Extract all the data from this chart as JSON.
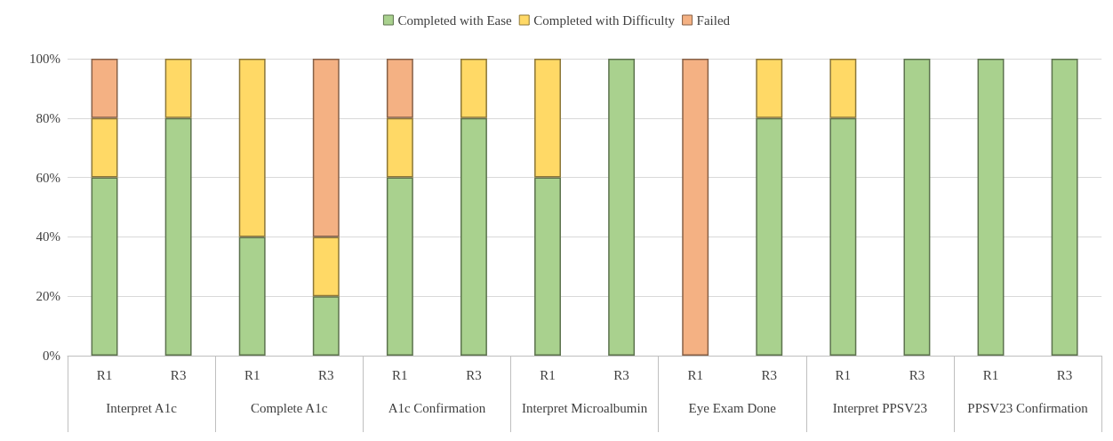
{
  "chart_data": {
    "type": "bar",
    "stacked": true,
    "categories": [
      "R1",
      "R3",
      "R1",
      "R3",
      "R1",
      "R3",
      "R1",
      "R3",
      "R1",
      "R3",
      "R1",
      "R3",
      "R1",
      "R3"
    ],
    "series": [
      {
        "name": "Completed with Ease",
        "color": "#a9d18e",
        "values": [
          60,
          80,
          40,
          20,
          60,
          80,
          60,
          100,
          0,
          80,
          80,
          100,
          100,
          100
        ]
      },
      {
        "name": "Completed with Difficulty",
        "color": "#ffd966",
        "values": [
          20,
          20,
          60,
          20,
          20,
          20,
          40,
          0,
          0,
          20,
          20,
          0,
          0,
          0
        ]
      },
      {
        "name": "Failed",
        "color": "#f4b183",
        "values": [
          20,
          0,
          0,
          60,
          20,
          0,
          0,
          0,
          100,
          0,
          0,
          0,
          0,
          0
        ]
      }
    ],
    "annotations": [
      "Interpret A1c",
      "Complete A1c",
      "A1c Confirmation",
      "Interpret Microalbumin",
      "Eye Exam Done",
      "Interpret PPSV23",
      "PPSV23 Confirmation"
    ],
    "ylim": [
      0,
      100
    ],
    "yticks": [
      {
        "value": 0,
        "label": "0%"
      },
      {
        "value": 20,
        "label": "20%"
      },
      {
        "value": 40,
        "label": "40%"
      },
      {
        "value": 60,
        "label": "60%"
      },
      {
        "value": 80,
        "label": "80%"
      },
      {
        "value": 100,
        "label": "100%"
      }
    ],
    "grid": "y",
    "legend": "top"
  }
}
